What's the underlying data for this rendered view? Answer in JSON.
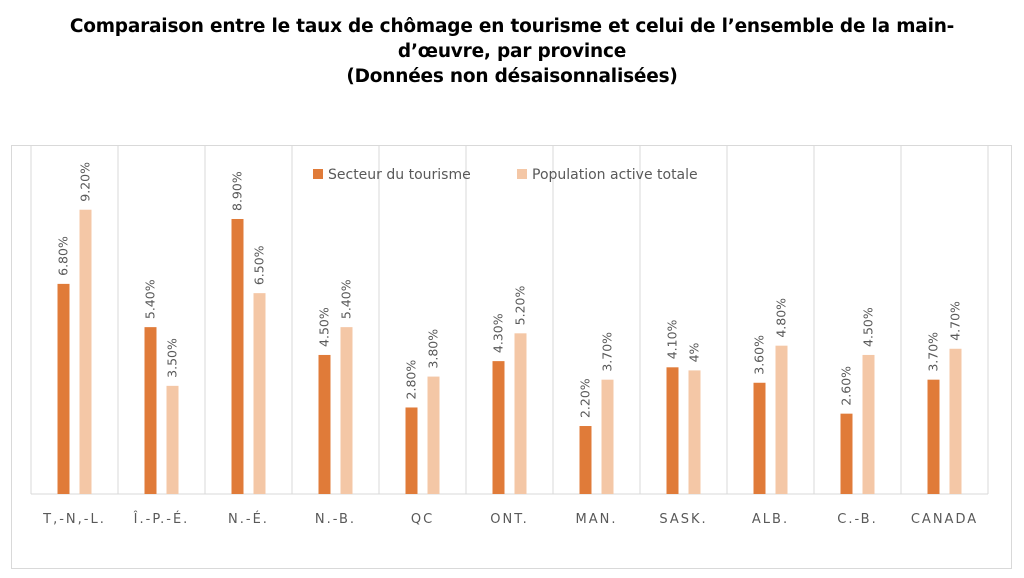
{
  "title_lines": [
    "Comparaison entre le taux de chômage en tourisme et celui de l’ensemble de la main-",
    "d’œuvre, par province",
    "(Données non désaisonnalisées)"
  ],
  "chart_data": {
    "type": "bar",
    "title": "Comparaison entre le taux de chômage en tourisme et celui de l’ensemble de la main-d’œuvre, par province (Données non désaisonnalisées)",
    "categories": [
      "T,-N,-L.",
      "Î.-P.-É.",
      "N.-É.",
      "N.-B.",
      "QC",
      "ONT.",
      "MAN.",
      "SASK.",
      "ALB.",
      "C.-B.",
      "CANADA"
    ],
    "series": [
      {
        "name": "Secteur du tourisme",
        "color": "#e07b39",
        "values": [
          6.8,
          5.4,
          8.9,
          4.5,
          2.8,
          4.3,
          2.2,
          4.1,
          3.6,
          2.6,
          3.7
        ],
        "labels": [
          "6.80%",
          "5.40%",
          "8.90%",
          "4.50%",
          "2.80%",
          "4.30%",
          "2.20%",
          "4.10%",
          "3.60%",
          "2.60%",
          "3.70%"
        ]
      },
      {
        "name": "Population active totale",
        "color": "#f4c7a6",
        "values": [
          9.2,
          3.5,
          6.5,
          5.4,
          3.8,
          5.2,
          3.7,
          4.0,
          4.8,
          4.5,
          4.7
        ],
        "labels": [
          "9.20%",
          "3.50%",
          "6.50%",
          "5.40%",
          "3.80%",
          "5.20%",
          "3.70%",
          "4%",
          "4.80%",
          "4.50%",
          "4.70%"
        ]
      }
    ],
    "legend_position": "top",
    "ylim": [
      0,
      10
    ],
    "grid": "vertical-separators"
  }
}
